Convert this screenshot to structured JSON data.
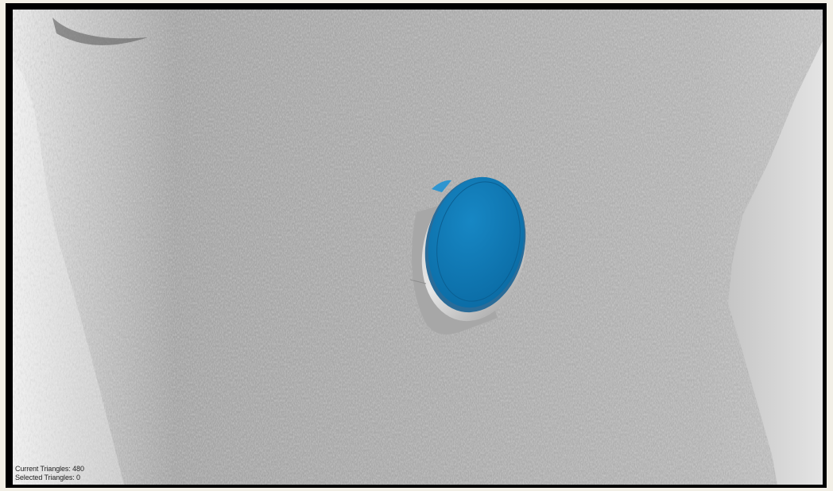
{
  "viewport": {
    "background_color": "#b9b9b9",
    "mesh_color": "#a9a9a9",
    "object_color": "#0e78b5",
    "object_rim_color": "#d9d9d9"
  },
  "status": {
    "current_triangles": "Current Triangles: 480",
    "selected_triangles": "Selected Triangles: 0"
  }
}
